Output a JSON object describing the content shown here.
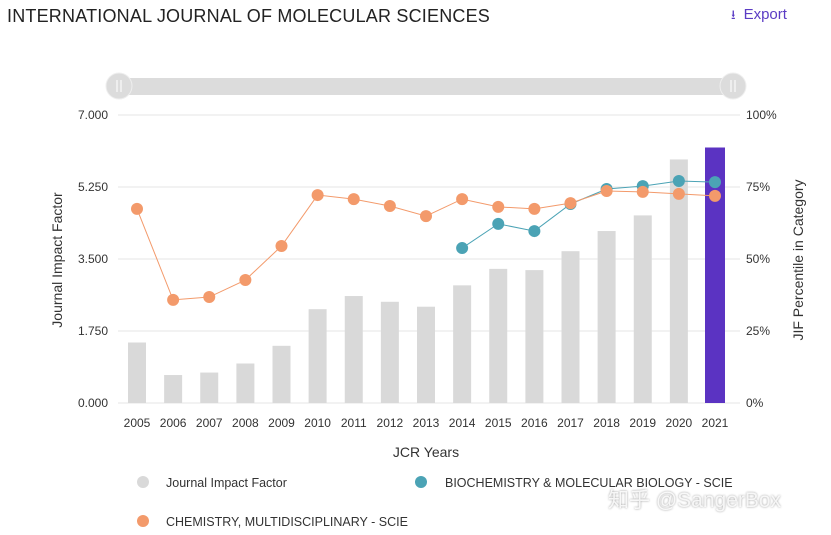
{
  "header": {
    "title": "INTERNATIONAL JOURNAL OF MOLECULAR SCIENCES",
    "export_label": "Export",
    "export_icon": "download-icon"
  },
  "watermark": "知乎 @SangerBox",
  "colors": {
    "bar": "#d9d9d9",
    "bar_highlight": "#5b33c2",
    "biochem": "#4ba3b5",
    "chem": "#f39a6b",
    "grid": "#e6e6e6",
    "slider": "#dcdcdc"
  },
  "chart_data": {
    "type": "bar+line",
    "xlabel": "JCR Years",
    "ylabel": "Journal Impact Factor",
    "y2label": "JIF Percentile in Category",
    "ylim": [
      0,
      7
    ],
    "y2lim": [
      0,
      100
    ],
    "yticks": [
      "0.000",
      "1.750",
      "3.500",
      "5.250",
      "7.000"
    ],
    "y2ticks": [
      "0%",
      "25%",
      "50%",
      "75%",
      "100%"
    ],
    "grid": true,
    "legend_position": "bottom",
    "categories": [
      "2005",
      "2006",
      "2007",
      "2008",
      "2009",
      "2010",
      "2011",
      "2012",
      "2013",
      "2014",
      "2015",
      "2016",
      "2017",
      "2018",
      "2019",
      "2020",
      "2021"
    ],
    "highlighted_category": "2021",
    "bars": {
      "name": "Journal Impact Factor",
      "values": [
        1.47,
        0.68,
        0.74,
        0.96,
        1.39,
        2.28,
        2.6,
        2.46,
        2.34,
        2.86,
        3.26,
        3.23,
        3.69,
        4.18,
        4.56,
        5.92,
        6.21
      ]
    },
    "series": [
      {
        "name": "BIOCHEMISTRY & MOLECULAR BIOLOGY - SCIE",
        "values": [
          null,
          null,
          null,
          null,
          null,
          null,
          null,
          null,
          null,
          53.8,
          62.2,
          59.7,
          69.1,
          74.3,
          75.3,
          77.1,
          76.7
        ]
      },
      {
        "name": "CHEMISTRY, MULTIDISCIPLINARY - SCIE",
        "values": [
          67.4,
          35.8,
          36.8,
          42.7,
          54.5,
          72.2,
          70.8,
          68.4,
          64.9,
          70.8,
          68.1,
          67.4,
          69.4,
          73.6,
          73.3,
          72.6,
          71.9
        ]
      }
    ]
  }
}
